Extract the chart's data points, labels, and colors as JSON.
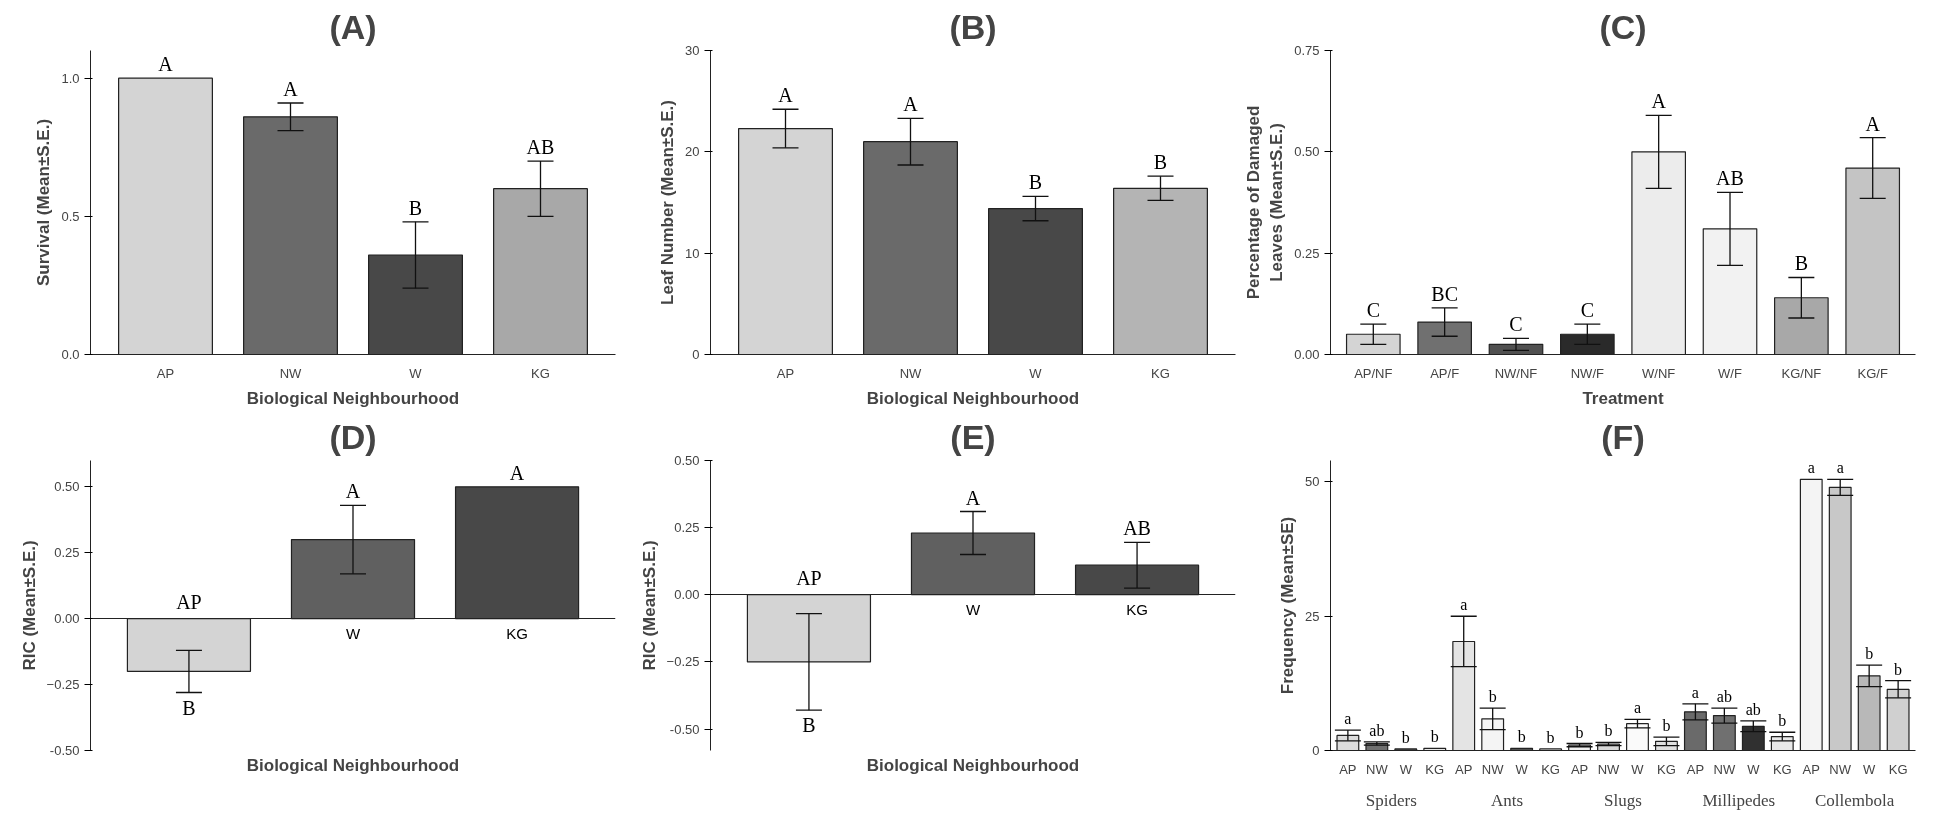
{
  "chart_data": [
    {
      "type": "bar",
      "title": "(A)",
      "xlabel": "Biological Neighbourhood",
      "ylabel": "Survival (Mean±S.E.)",
      "categories": [
        "AP",
        "NW",
        "W",
        "KG"
      ],
      "values": [
        1.0,
        0.86,
        0.36,
        0.6
      ],
      "errors": [
        null,
        0.05,
        0.12,
        0.1
      ],
      "colors": [
        "#d4d4d4",
        "#6a6a6a",
        "#484848",
        "#a8a8a8"
      ],
      "value_labels": [
        "A",
        "A",
        "B",
        "AB"
      ],
      "ylim": [
        0,
        1.1
      ],
      "yticks": [
        {
          "value": 0,
          "label": "0.0"
        },
        0.5,
        {
          "value": 1,
          "label": "1.0"
        }
      ],
      "grid": false
    },
    {
      "type": "bar",
      "title": "(B)",
      "xlabel": "Biological Neighbourhood",
      "ylabel": "Leaf Number (Mean±S.E.)",
      "categories": [
        "AP",
        "NW",
        "W",
        "KG"
      ],
      "values": [
        22.3,
        21.0,
        14.4,
        16.4
      ],
      "errors": [
        1.9,
        2.3,
        1.2,
        1.2
      ],
      "colors": [
        "#d4d4d4",
        "#6a6a6a",
        "#484848",
        "#b4b4b4"
      ],
      "value_labels": [
        "A",
        "A",
        "B",
        "B"
      ],
      "ylim": [
        0,
        30
      ],
      "yticks": [
        0,
        10,
        20,
        30
      ],
      "grid": false
    },
    {
      "type": "bar",
      "title": "(C)",
      "xlabel": "Treatment",
      "ylabel": "Percentage of Damaged\nLeaves (Mean±S.E.)",
      "categories": [
        "AP/NF",
        "AP/F",
        "NW/NF",
        "NW/F",
        "W/NF",
        "W/F",
        "KG/NF",
        "KG/F"
      ],
      "values": [
        0.05,
        0.08,
        0.025,
        0.05,
        0.5,
        0.31,
        0.14,
        0.46
      ],
      "errors": [
        0.025,
        0.035,
        0.015,
        0.025,
        0.09,
        0.09,
        0.05,
        0.075
      ],
      "colors": [
        "#d4d4d4",
        "#707070",
        "#505050",
        "#2a2a2a",
        "#ececec",
        "#f2f2f2",
        "#a8a8a8",
        "#c4c4c4"
      ],
      "value_labels": [
        "C",
        "BC",
        "C",
        "C",
        "A",
        "AB",
        "B",
        "A"
      ],
      "ylim": [
        0,
        0.75
      ],
      "yticks": [
        {
          "value": 0,
          "label": "0.00"
        },
        0.25,
        {
          "value": 0.5,
          "label": "0.50"
        },
        0.75
      ],
      "grid": false
    },
    {
      "type": "bar",
      "title": "(D)",
      "xlabel": "Biological Neighbourhood",
      "ylabel": "RIC (Mean±S.E.)",
      "categories": [
        "AP",
        "W",
        "KG"
      ],
      "values": [
        -0.2,
        0.3,
        0.5
      ],
      "errors": [
        0.08,
        0.13,
        null
      ],
      "colors": [
        "#d4d4d4",
        "#606060",
        "#484848"
      ],
      "value_labels": [
        "B",
        "A",
        "A"
      ],
      "ylim": [
        -0.5,
        0.6
      ],
      "yticks": [
        {
          "value": -0.5,
          "label": "-0.50"
        },
        -0.25,
        {
          "value": 0,
          "label": "0.00"
        },
        0.25,
        {
          "value": 0.5,
          "label": "0.50"
        }
      ],
      "grid": false
    },
    {
      "type": "bar",
      "title": "(E)",
      "xlabel": "Biological Neighbourhood",
      "ylabel": "RIC (Mean±S.E.)",
      "categories": [
        "AP",
        "W",
        "KG"
      ],
      "values": [
        -0.25,
        0.23,
        0.11
      ],
      "errors": [
        0.18,
        0.08,
        0.085
      ],
      "colors": [
        "#d4d4d4",
        "#606060",
        "#484848"
      ],
      "value_labels": [
        "B",
        "A",
        "AB"
      ],
      "ylim": [
        -0.58,
        0.5
      ],
      "yticks": [
        {
          "value": -0.5,
          "label": "-0.50"
        },
        -0.25,
        {
          "value": 0,
          "label": "0.00"
        },
        0.25,
        {
          "value": 0.5,
          "label": "0.50"
        }
      ],
      "grid": false
    },
    {
      "type": "bar",
      "title": "(F)",
      "ylabel": "Frequency (Mean±SE)",
      "categories": [
        "AP",
        "NW",
        "W",
        "KG",
        "AP",
        "NW",
        "W",
        "KG",
        "AP",
        "NW",
        "W",
        "KG",
        "AP",
        "NW",
        "W",
        "KG",
        "AP",
        "NW",
        "W",
        "KG"
      ],
      "values": [
        2.8,
        1.3,
        0.3,
        0.4,
        20.3,
        5.9,
        0.4,
        0.3,
        1.0,
        1.2,
        5.0,
        1.7,
        7.2,
        6.5,
        4.5,
        2.6,
        50.5,
        49.0,
        13.9,
        11.4
      ],
      "errors": [
        1.0,
        0.3,
        null,
        null,
        4.7,
        2.0,
        null,
        null,
        0.3,
        0.3,
        0.8,
        0.8,
        1.5,
        1.4,
        1.0,
        0.8,
        null,
        1.5,
        2.0,
        1.6
      ],
      "colors": [
        "#dcdcdc",
        "#707070",
        "#505050",
        "#e8e8e8",
        "#e4e4e4",
        "#f4f4f4",
        "#505050",
        "#e8e8e8",
        "#f0f0f0",
        "#d8d8d8",
        "#fafafa",
        "#e0e0e0",
        "#6a6a6a",
        "#707070",
        "#303030",
        "#e8e8e8",
        "#f4f4f4",
        "#c8c8c8",
        "#b8b8b8",
        "#d0d0d0"
      ],
      "value_labels": [
        "a",
        "ab",
        "b",
        "b",
        "a",
        "b",
        "b",
        "b",
        "b",
        "b",
        "a",
        "b",
        "a",
        "ab",
        "ab",
        "b",
        "a",
        "a",
        "b",
        "b"
      ],
      "annotations": [
        "Spiders",
        "Ants",
        "Slugs",
        "Millipedes",
        "Collembola"
      ],
      "ylim": [
        0,
        54
      ],
      "yticks": [
        0,
        25,
        50
      ],
      "grid": false
    }
  ]
}
